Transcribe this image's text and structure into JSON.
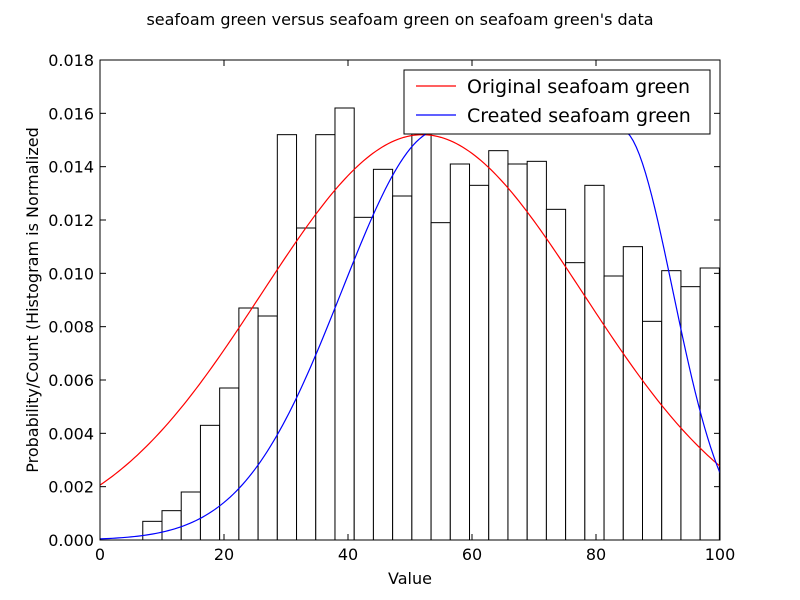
{
  "chart_data": {
    "type": "bar",
    "title": "seafoam green versus seafoam green on seafoam green's data",
    "xlabel": "Value",
    "ylabel": "Probability/Count (Histogram is Normalized",
    "xlim": [
      0,
      100
    ],
    "ylim": [
      0,
      0.018
    ],
    "xticks": [
      0,
      20,
      40,
      60,
      80,
      100
    ],
    "xtick_labels": [
      "0",
      "20",
      "40",
      "60",
      "80",
      "100"
    ],
    "yticks": [
      0,
      0.002,
      0.004,
      0.006,
      0.008,
      0.01,
      0.012,
      0.014,
      0.016,
      0.018
    ],
    "ytick_labels": [
      "0.000",
      "0.002",
      "0.004",
      "0.006",
      "0.008",
      "0.010",
      "0.012",
      "0.014",
      "0.016",
      "0.018"
    ],
    "grid": false,
    "legend_position": "top-right",
    "histogram": {
      "bin_edges": [
        6.9,
        10.0,
        13.1,
        16.2,
        19.3,
        22.4,
        25.5,
        28.6,
        31.7,
        34.8,
        37.9,
        41.0,
        44.1,
        47.2,
        50.3,
        53.4,
        56.5,
        59.6,
        62.7,
        65.8,
        68.9,
        72.0,
        75.1,
        78.2,
        81.3,
        84.4,
        87.5,
        90.6,
        93.7,
        96.8,
        99.9
      ],
      "values": [
        0.0007,
        0.0011,
        0.0018,
        0.0043,
        0.0057,
        0.0087,
        0.0084,
        0.0152,
        0.0117,
        0.0152,
        0.0162,
        0.0121,
        0.0139,
        0.0129,
        0.016,
        0.0119,
        0.0141,
        0.0133,
        0.0146,
        0.0141,
        0.0142,
        0.0124,
        0.0104,
        0.0133,
        0.0099,
        0.011,
        0.0082,
        0.0101,
        0.0095,
        0.0102
      ],
      "edge_color": "#000000",
      "fill_color": "#ffffff"
    },
    "series": [
      {
        "name": "Original seafoam green",
        "color": "#ff0000",
        "curve": {
          "kind": "gaussian",
          "mean": 52.0,
          "sd": 26.0,
          "peak": 0.0152
        }
      },
      {
        "name": "Created seafoam green",
        "color": "#0000ff",
        "curve": {
          "kind": "flat_top_gaussian",
          "rise_mean": 55.0,
          "rise_sd": 16.0,
          "fall_mean": 84.0,
          "fall_sd": 8.4,
          "peak": 0.0154
        }
      }
    ]
  }
}
